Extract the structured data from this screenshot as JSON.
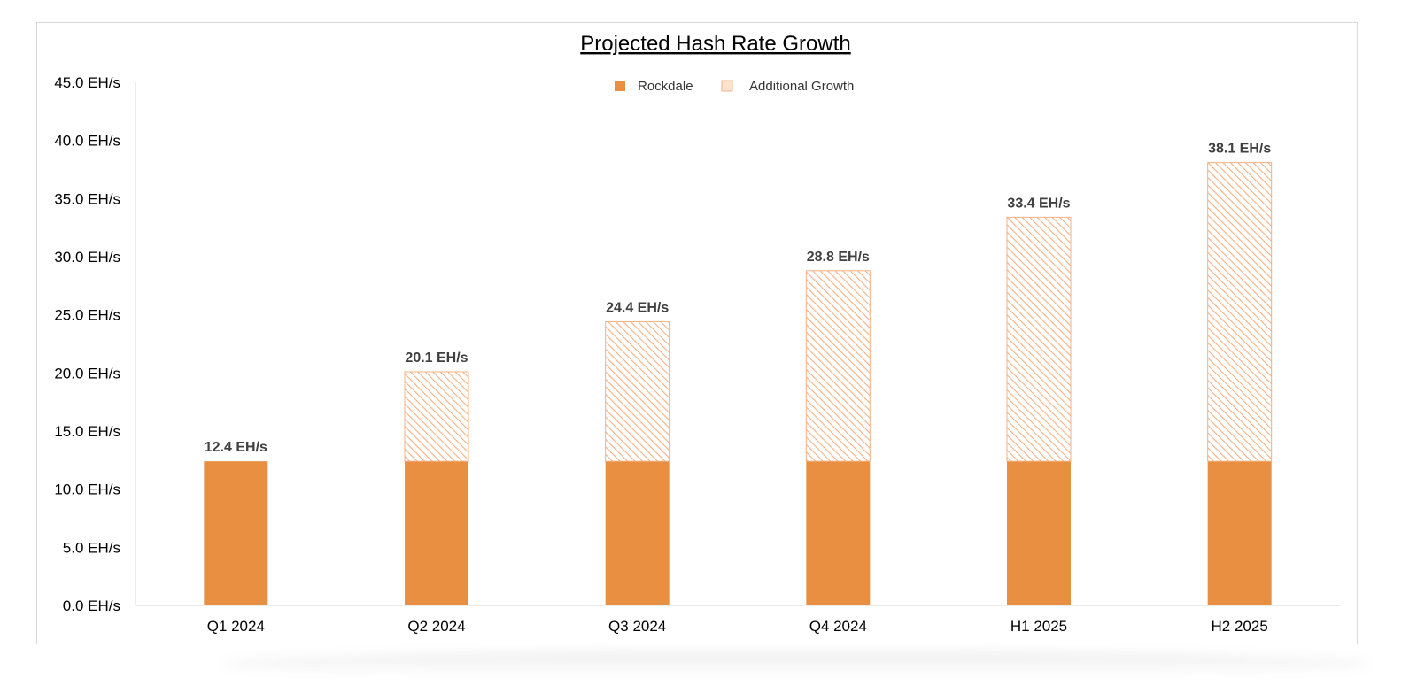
{
  "chart_data": {
    "type": "bar",
    "stacked": true,
    "title": "Projected Hash Rate Growth",
    "xlabel": "",
    "ylabel": "",
    "ylim": [
      0,
      45
    ],
    "y_tick_step": 5,
    "y_tick_labels": [
      "0.0 EH/s",
      "5.0 EH/s",
      "10.0 EH/s",
      "15.0 EH/s",
      "20.0 EH/s",
      "25.0 EH/s",
      "30.0 EH/s",
      "35.0 EH/s",
      "40.0 EH/s",
      "45.0 EH/s"
    ],
    "categories": [
      "Q1 2024",
      "Q2 2024",
      "Q3 2024",
      "Q4 2024",
      "H1 2025",
      "H2 2025"
    ],
    "series": [
      {
        "name": "Rockdale",
        "values": [
          12.4,
          12.4,
          12.4,
          12.4,
          12.4,
          12.4
        ],
        "color": "#e98f41",
        "fill": "solid"
      },
      {
        "name": "Additional Growth",
        "values": [
          0,
          7.7,
          12.0,
          16.4,
          21.0,
          25.7
        ],
        "color": "#f4b183",
        "fill": "hatched"
      }
    ],
    "total_labels": [
      "12.4 EH/s",
      "20.1 EH/s",
      "24.4 EH/s",
      "28.8 EH/s",
      "33.4 EH/s",
      "38.1 EH/s"
    ],
    "grid": false,
    "legend_position": "top-center"
  }
}
